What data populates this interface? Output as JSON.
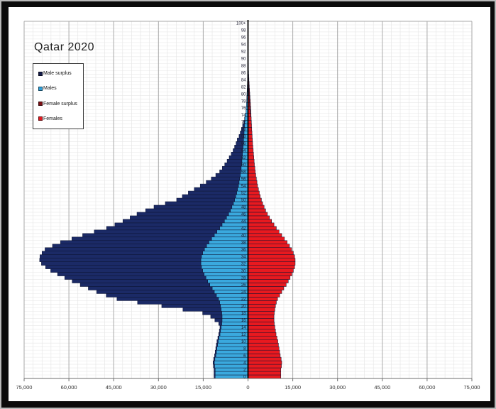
{
  "page": {
    "title": "Qatar 2020"
  },
  "colors": {
    "frame": "#0b0b0b",
    "panel": "#ffffff",
    "grid_minor": "#e4e4e4",
    "grid_major": "#a9a9a9",
    "grid_row": "#e7e7e7",
    "axis_line": "#6e6e6e",
    "center_axis": "#000000",
    "bar_outline": "#0c1331",
    "age_label_text": "#1c1c30",
    "tick_label_text": "#333333"
  },
  "chart_data": {
    "type": "bar",
    "subtype": "population-pyramid",
    "title": "Qatar 2020",
    "x_axis": {
      "min": -75000,
      "max": 75000,
      "major_step": 15000,
      "minor_step": 3000,
      "tick_values": [
        -75000,
        -60000,
        -45000,
        -30000,
        -15000,
        0,
        15000,
        30000,
        45000,
        60000,
        75000
      ],
      "tick_labels": [
        "75,000",
        "60,000",
        "45,000",
        "30,000",
        "15,000",
        "0",
        "15,000",
        "30,000",
        "45,000",
        "60,000",
        "75,000"
      ]
    },
    "y_axis": {
      "unit": "single-year age",
      "min": 0,
      "max": 100,
      "label_step": 2,
      "top_label": "100+"
    },
    "legend": [
      {
        "label": "Male surplus",
        "color": "#141c4a"
      },
      {
        "label": "Males",
        "color": "#2f9fd8"
      },
      {
        "label": "Female surplus",
        "color": "#7d0f14"
      },
      {
        "label": "Females",
        "color": "#e01a20"
      }
    ],
    "series": [
      {
        "name": "Males",
        "color": "#3aa9de",
        "surplus_color": "#1b2a66",
        "values": [
          11400,
          11400,
          11400,
          11600,
          11700,
          11500,
          11200,
          11000,
          10800,
          10600,
          10400,
          10100,
          9800,
          9600,
          9400,
          9800,
          11100,
          12500,
          15200,
          21800,
          28900,
          37000,
          43900,
          47500,
          50700,
          53500,
          56200,
          58900,
          61400,
          63800,
          66100,
          67800,
          69200,
          69800,
          69700,
          69000,
          68000,
          65500,
          62800,
          59000,
          55400,
          51500,
          47400,
          44600,
          41900,
          39500,
          37200,
          34300,
          31500,
          27700,
          23900,
          22000,
          20000,
          18000,
          16000,
          14000,
          12300,
          10800,
          9500,
          8600,
          7800,
          7000,
          6300,
          5600,
          5000,
          4500,
          4000,
          3600,
          3000,
          2600,
          2200,
          1800,
          1450,
          1150,
          950,
          700,
          600,
          520,
          450,
          400,
          350,
          300,
          250,
          210,
          170,
          140,
          110,
          88,
          68,
          52,
          40,
          30,
          22,
          16,
          11,
          8,
          5,
          4,
          2,
          2,
          2
        ]
      },
      {
        "name": "Females",
        "color": "#e8191f",
        "surplus_color": "#8e1216",
        "values": [
          11000,
          11000,
          11000,
          11200,
          11300,
          11100,
          10800,
          10600,
          10400,
          10200,
          10000,
          9700,
          9400,
          9200,
          9000,
          8800,
          8700,
          8700,
          8800,
          9000,
          9200,
          9500,
          9900,
          10600,
          11300,
          12000,
          12800,
          13500,
          14100,
          14700,
          15200,
          15600,
          15800,
          15800,
          15600,
          15200,
          14600,
          13900,
          13100,
          12200,
          11300,
          10400,
          9500,
          8700,
          7900,
          7200,
          6500,
          5900,
          5400,
          4900,
          4500,
          4100,
          3800,
          3500,
          3200,
          3000,
          2800,
          2600,
          2450,
          2300,
          2150,
          2050,
          1950,
          1850,
          1750,
          1650,
          1550,
          1480,
          1400,
          1330,
          1260,
          1200,
          1140,
          1080,
          1020,
          960,
          900,
          830,
          760,
          680,
          600,
          520,
          450,
          380,
          320,
          265,
          215,
          175,
          140,
          110,
          85,
          65,
          50,
          37,
          27,
          19,
          13,
          9,
          6,
          4,
          5
        ]
      }
    ]
  }
}
